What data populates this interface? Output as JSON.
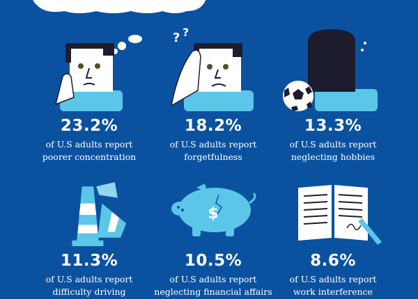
{
  "colors": {
    "background": "#0a52a0",
    "accent": "#5cc6e8",
    "text": "#ffffff"
  },
  "stats": [
    {
      "icon": "thinking-person-icon",
      "percent": "23.2%",
      "line1": "of U.S adults report",
      "line2": "poorer concentration"
    },
    {
      "icon": "confused-person-icon",
      "percent": "18.2%",
      "line1": "of U.S adults report",
      "line2": "forgetfulness"
    },
    {
      "icon": "person-with-soccer-ball-icon",
      "percent": "13.3%",
      "line1": "of U.S adults report",
      "line2": "neglecting hobbies"
    },
    {
      "icon": "traffic-cones-icon",
      "percent": "11.3%",
      "line1": "of U.S adults report",
      "line2": "difficulty driving"
    },
    {
      "icon": "piggy-bank-icon",
      "percent": "10.5%",
      "line1": "of U.S adults report",
      "line2": "neglecting financial affairs"
    },
    {
      "icon": "open-book-pen-icon",
      "percent": "8.6%",
      "line1": "of U.S adults report",
      "line2": "work interference"
    }
  ]
}
